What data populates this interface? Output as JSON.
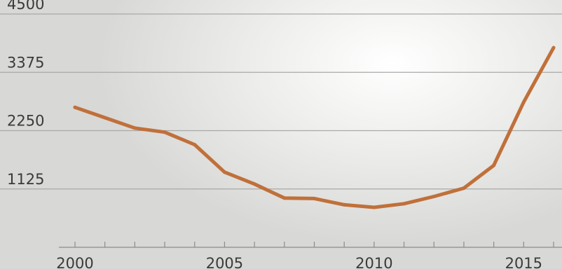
{
  "chart_data": {
    "type": "line",
    "title": "",
    "xlabel": "",
    "ylabel": "",
    "x": [
      2000,
      2001,
      2002,
      2003,
      2004,
      2005,
      2006,
      2007,
      2008,
      2009,
      2010,
      2011,
      2012,
      2013,
      2014,
      2015,
      2016
    ],
    "series": [
      {
        "values": [
          2700,
          2500,
          2300,
          2220,
          1980,
          1450,
          1220,
          950,
          940,
          820,
          770,
          840,
          980,
          1140,
          1580,
          2800,
          3850
        ]
      }
    ],
    "ylim": [
      0,
      4500
    ],
    "yticks": [
      "4500",
      "3375",
      "2250",
      "1125"
    ],
    "xticks": [
      "2000",
      "2005",
      "2010",
      "2015"
    ],
    "grid": true,
    "colors": {
      "line": "#c0703a",
      "grid": "#a9a9a7",
      "axis": "#8c8c8a",
      "text": "#3a3a3a"
    }
  }
}
